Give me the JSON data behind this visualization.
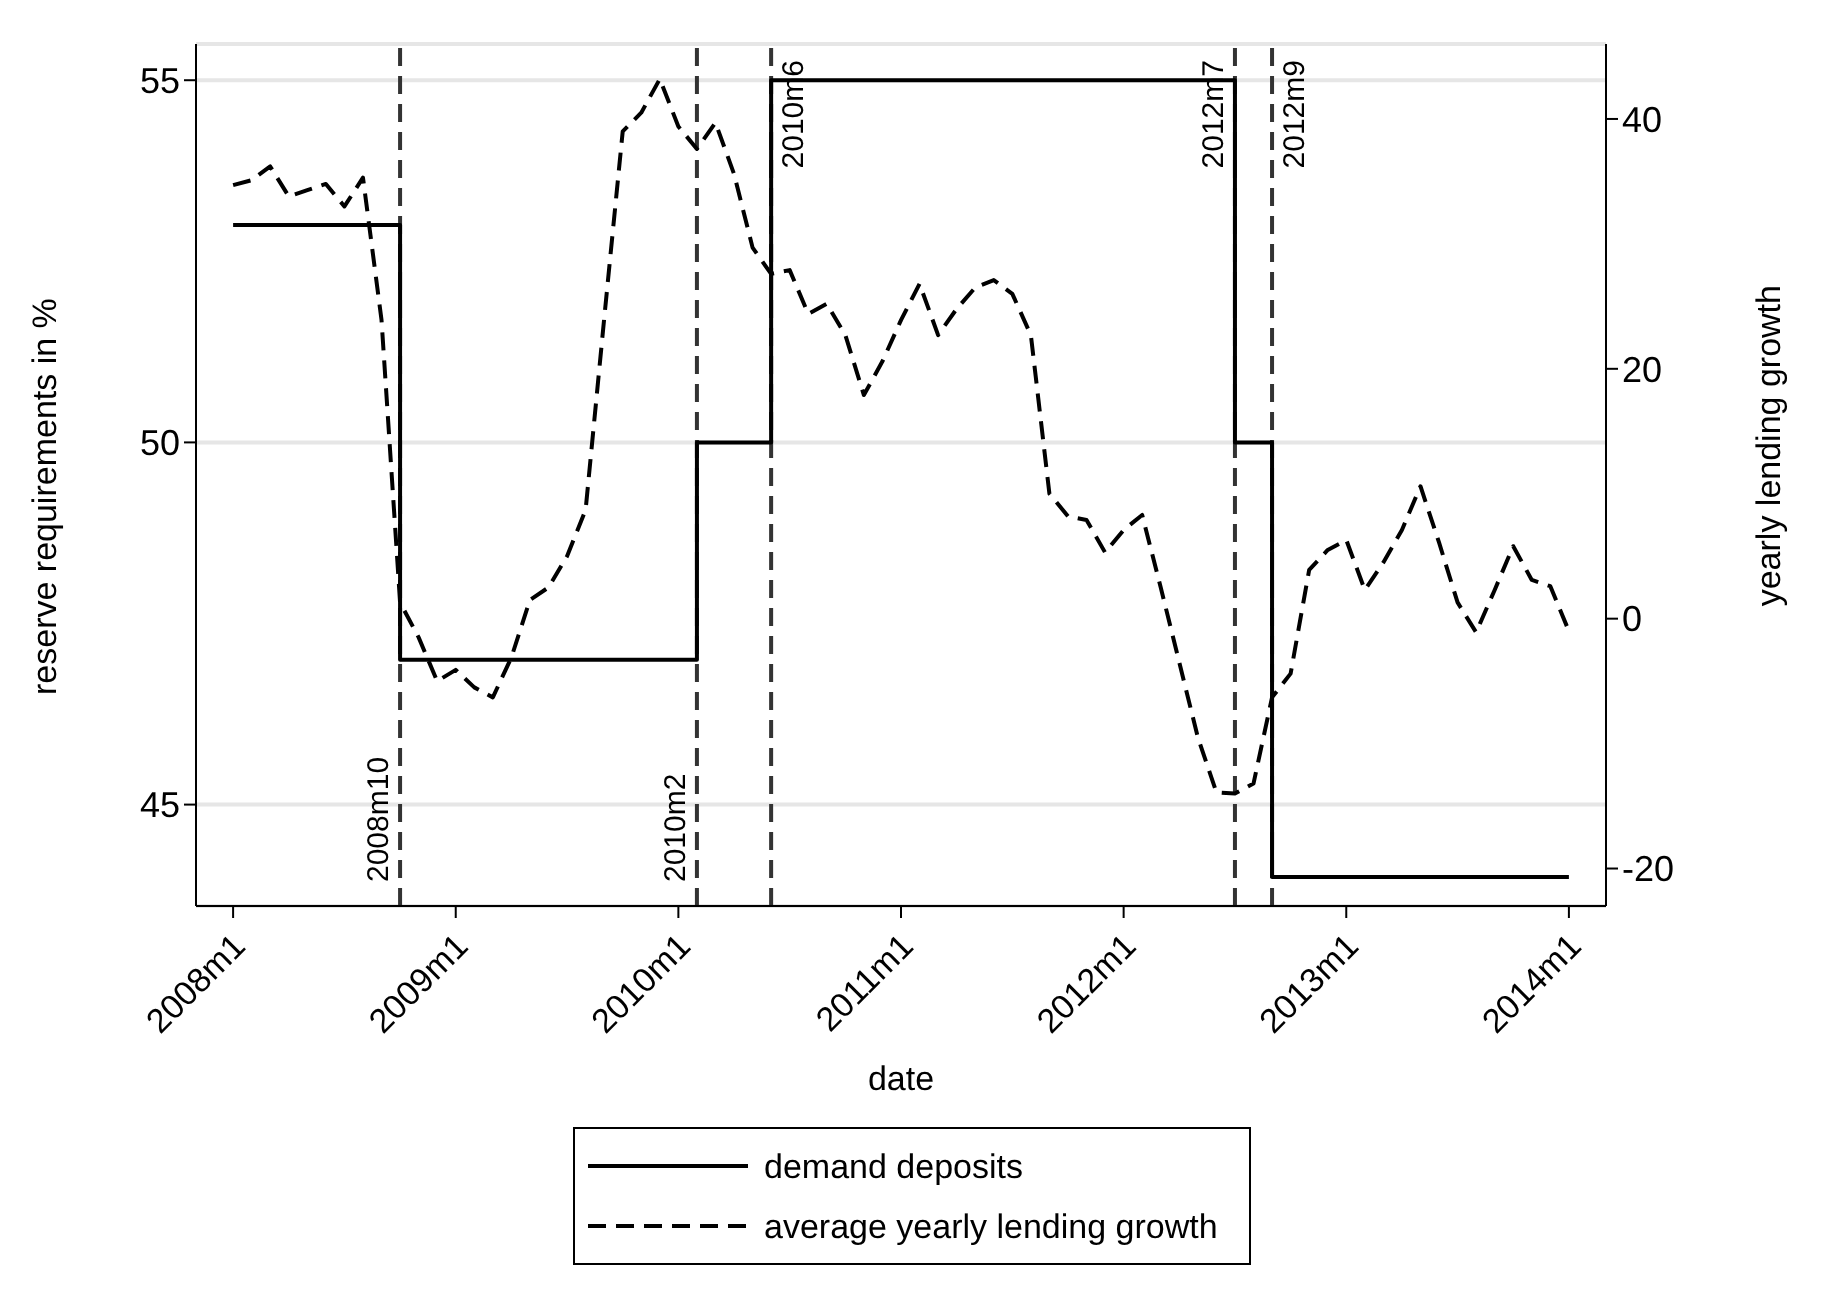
{
  "chart_data": {
    "type": "line",
    "xlabel": "date",
    "ylabel": "reserve requirements in %",
    "y2label": "yearly lending growth",
    "xlim": [
      "2007-11",
      "2014-03"
    ],
    "xticks": [
      {
        "value": "2008-01",
        "label": "2008m1"
      },
      {
        "value": "2009-01",
        "label": "2009m1"
      },
      {
        "value": "2010-01",
        "label": "2010m1"
      },
      {
        "value": "2011-01",
        "label": "2011m1"
      },
      {
        "value": "2012-01",
        "label": "2012m1"
      },
      {
        "value": "2013-01",
        "label": "2013m1"
      },
      {
        "value": "2014-01",
        "label": "2014m1"
      }
    ],
    "ylim": [
      43.6,
      55.5
    ],
    "yticks": [
      45,
      50,
      55
    ],
    "y2lim": [
      -23,
      46
    ],
    "y2ticks": [
      -20,
      0,
      20,
      40
    ],
    "grid": "y",
    "legend": "bottom",
    "series": [
      {
        "name": "demand deposits",
        "type": "step",
        "color": "#000000",
        "line_style": "solid",
        "x": [
          "2008-01",
          "2008-10",
          "2010-02",
          "2010-06",
          "2012-07",
          "2012-09",
          "2014-01"
        ],
        "values": [
          53,
          47,
          50,
          55,
          50,
          44,
          44
        ]
      },
      {
        "name": "average yearly lending growth",
        "type": "line",
        "axis": "y2",
        "color": "#000000",
        "line_style": "dashed",
        "x": [
          "2008-01",
          "2008-02",
          "2008-03",
          "2008-04",
          "2008-05",
          "2008-06",
          "2008-07",
          "2008-08",
          "2008-09",
          "2008-10",
          "2008-11",
          "2008-12",
          "2009-01",
          "2009-02",
          "2009-03",
          "2009-04",
          "2009-05",
          "2009-06",
          "2009-07",
          "2009-08",
          "2009-09",
          "2009-10",
          "2009-11",
          "2009-12",
          "2010-01",
          "2010-02",
          "2010-03",
          "2010-04",
          "2010-05",
          "2010-06",
          "2010-07",
          "2010-08",
          "2010-09",
          "2010-10",
          "2010-11",
          "2010-12",
          "2011-01",
          "2011-02",
          "2011-03",
          "2011-04",
          "2011-05",
          "2011-06",
          "2011-07",
          "2011-08",
          "2011-09",
          "2011-10",
          "2011-11",
          "2011-12",
          "2012-01",
          "2012-02",
          "2012-03",
          "2012-04",
          "2012-05",
          "2012-06",
          "2012-07",
          "2012-08",
          "2012-09",
          "2012-10",
          "2012-11",
          "2012-12",
          "2013-01",
          "2013-02",
          "2013-03",
          "2013-04",
          "2013-05",
          "2013-06",
          "2013-07",
          "2013-08",
          "2013-09",
          "2013-10",
          "2013-11",
          "2013-12",
          "2014-01"
        ],
        "values": [
          34.7,
          35.1,
          36.2,
          33.8,
          34.3,
          34.8,
          33.0,
          35.3,
          23.9,
          1.3,
          -1.5,
          -5.0,
          -4.1,
          -5.5,
          -6.3,
          -3.1,
          1.5,
          2.5,
          5.0,
          8.7,
          24,
          39,
          40.5,
          43.2,
          39.4,
          37.6,
          39.7,
          35.6,
          29.7,
          27.6,
          27.9,
          24.4,
          25.2,
          22.7,
          17.9,
          20.6,
          23.9,
          26.8,
          22.7,
          24.8,
          26.5,
          27.1,
          26,
          22.7,
          10,
          8.2,
          7.9,
          5.3,
          7.1,
          8.3,
          2.5,
          -3.5,
          -9.5,
          -13.9,
          -14.0,
          -13.2,
          -6.3,
          -4.4,
          3.9,
          5.5,
          6.3,
          2.3,
          4.5,
          7.1,
          10.6,
          6.1,
          1.3,
          -1.1,
          2.3,
          5.8,
          3.1,
          2.6,
          -1.0
        ]
      }
    ],
    "ref_lines": [
      {
        "axis": "x",
        "value": "2008-10",
        "label": "2008m10",
        "line_style": "dashed"
      },
      {
        "axis": "x",
        "value": "2010-02",
        "label": "2010m2",
        "line_style": "dashed"
      },
      {
        "axis": "x",
        "value": "2010-06",
        "label": "2010m6",
        "line_style": "dashed"
      },
      {
        "axis": "x",
        "value": "2012-07",
        "label": "2012m7",
        "line_style": "dashed"
      },
      {
        "axis": "x",
        "value": "2012-09",
        "label": "2012m9",
        "line_style": "dashed"
      }
    ]
  }
}
